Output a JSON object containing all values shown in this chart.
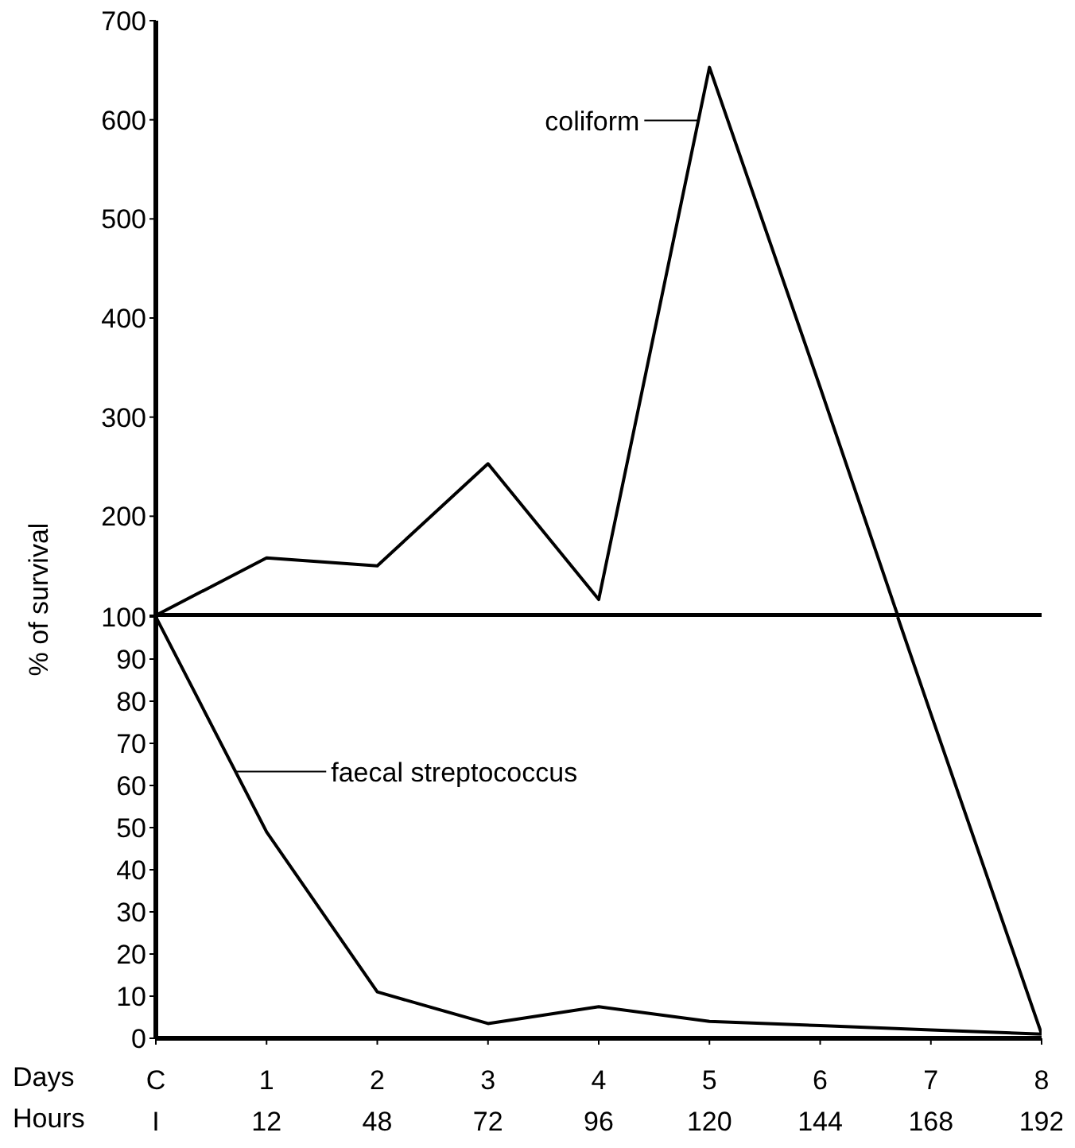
{
  "chart_data": [
    {
      "type": "line",
      "ylabel": "% of survival",
      "series": [
        {
          "name": "coliform",
          "color": "#000000",
          "x": [
            0,
            1,
            2,
            3,
            4,
            5,
            6,
            6.7
          ],
          "values": [
            100,
            158,
            150,
            253,
            116,
            653,
            330,
            100
          ]
        }
      ],
      "xlim": [
        0,
        8
      ],
      "ylim": [
        100,
        700
      ],
      "yticks": [
        {
          "value": 100,
          "label": null
        },
        200,
        300,
        400,
        500,
        600,
        700
      ],
      "tick_labels": "y",
      "grid": false,
      "legend": "top right",
      "marker": "none",
      "line_style": "solid"
    },
    {
      "type": "line",
      "xlabel": "Days",
      "series": [
        {
          "color": "#000000",
          "x": [
            6.7,
            7,
            8
          ],
          "values": [
            100,
            77,
            1
          ]
        },
        {
          "name": "faecal streptococcus",
          "color": "#000000",
          "x": [
            0,
            1,
            2,
            3,
            4,
            5,
            6,
            7,
            8
          ],
          "values": [
            100,
            49,
            11,
            3.5,
            7.5,
            4,
            3,
            2,
            1
          ]
        }
      ],
      "xlim": [
        0,
        8
      ],
      "xticks": [
        {
          "value": 0,
          "label": "C"
        },
        1,
        2,
        3,
        4,
        5,
        6,
        7,
        8
      ],
      "ylim": [
        0,
        100
      ],
      "yticks": [
        0,
        10,
        20,
        30,
        40,
        50,
        60,
        70,
        80,
        90,
        100
      ],
      "annotations": [
        "Hours",
        "I",
        "12",
        "48",
        "72",
        "96",
        "120",
        "144",
        "168",
        "192"
      ],
      "grid": false,
      "legend": "left",
      "marker": "none",
      "line_style": "solid"
    }
  ]
}
